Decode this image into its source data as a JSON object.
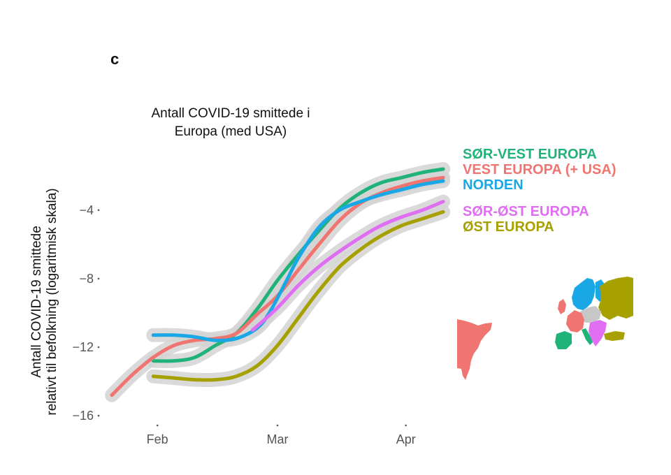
{
  "panel_label": "c",
  "chart_data": {
    "type": "line",
    "title_lines": [
      "Antall COVID-19 smittede i",
      "Europa (med USA)"
    ],
    "ylabel_lines": [
      "Antall COVID-19 smittede",
      "relativt til befolkning (logaritmisk skala)"
    ],
    "xlabel": "",
    "x_ticks": [
      {
        "label": "Feb",
        "day": 1
      },
      {
        "label": "Mar",
        "day": 30
      },
      {
        "label": "Apr",
        "day": 61
      }
    ],
    "y_ticks": [
      -4,
      -8,
      -12,
      -16
    ],
    "xlim": [
      -10,
      71
    ],
    "ylim": [
      -16.2,
      -0.5
    ],
    "grid": false,
    "confidence_band": true,
    "legend_position": "right",
    "series": [
      {
        "name": "SØR-VEST EUROPA",
        "color": "#1fb37a",
        "points": [
          [
            0,
            -12.8
          ],
          [
            5,
            -12.8
          ],
          [
            10,
            -12.6
          ],
          [
            15,
            -11.9
          ],
          [
            20,
            -11.2
          ],
          [
            25,
            -9.8
          ],
          [
            30,
            -8.1
          ],
          [
            35,
            -6.6
          ],
          [
            40,
            -5.2
          ],
          [
            45,
            -3.9
          ],
          [
            50,
            -3.0
          ],
          [
            55,
            -2.4
          ],
          [
            60,
            -2.1
          ],
          [
            65,
            -1.8
          ],
          [
            70,
            -1.6
          ]
        ]
      },
      {
        "name": "VEST EUROPA (+ USA)",
        "color": "#f07470",
        "points": [
          [
            -10,
            -14.8
          ],
          [
            -5,
            -13.6
          ],
          [
            0,
            -12.6
          ],
          [
            5,
            -11.9
          ],
          [
            10,
            -11.6
          ],
          [
            15,
            -11.5
          ],
          [
            20,
            -11.2
          ],
          [
            25,
            -10.1
          ],
          [
            30,
            -9.0
          ],
          [
            35,
            -7.5
          ],
          [
            40,
            -6.0
          ],
          [
            45,
            -4.6
          ],
          [
            50,
            -3.6
          ],
          [
            55,
            -3.0
          ],
          [
            60,
            -2.6
          ],
          [
            65,
            -2.3
          ],
          [
            70,
            -2.1
          ]
        ]
      },
      {
        "name": "NORDEN",
        "color": "#1aa7e6",
        "points": [
          [
            0,
            -11.3
          ],
          [
            5,
            -11.3
          ],
          [
            10,
            -11.4
          ],
          [
            15,
            -11.6
          ],
          [
            20,
            -11.5
          ],
          [
            25,
            -10.9
          ],
          [
            28,
            -10.0
          ],
          [
            32,
            -8.2
          ],
          [
            35,
            -6.8
          ],
          [
            40,
            -5.0
          ],
          [
            45,
            -4.0
          ],
          [
            50,
            -3.5
          ],
          [
            55,
            -3.1
          ],
          [
            60,
            -2.8
          ],
          [
            65,
            -2.5
          ],
          [
            70,
            -2.3
          ]
        ]
      },
      {
        "name": "SØR-ØST EUROPA",
        "color": "#df6ef2",
        "points": [
          [
            24,
            -11.0
          ],
          [
            30,
            -9.7
          ],
          [
            35,
            -8.4
          ],
          [
            40,
            -7.3
          ],
          [
            45,
            -6.4
          ],
          [
            50,
            -5.6
          ],
          [
            55,
            -4.9
          ],
          [
            60,
            -4.4
          ],
          [
            65,
            -4.0
          ],
          [
            70,
            -3.5
          ]
        ]
      },
      {
        "name": "ØST EUROPA",
        "color": "#a6a000",
        "points": [
          [
            0,
            -13.7
          ],
          [
            5,
            -13.8
          ],
          [
            10,
            -13.9
          ],
          [
            15,
            -13.9
          ],
          [
            20,
            -13.7
          ],
          [
            25,
            -13.1
          ],
          [
            30,
            -11.9
          ],
          [
            35,
            -10.3
          ],
          [
            40,
            -8.7
          ],
          [
            45,
            -7.3
          ],
          [
            50,
            -6.3
          ],
          [
            55,
            -5.5
          ],
          [
            60,
            -4.9
          ],
          [
            65,
            -4.5
          ],
          [
            70,
            -4.1
          ]
        ]
      }
    ]
  }
}
